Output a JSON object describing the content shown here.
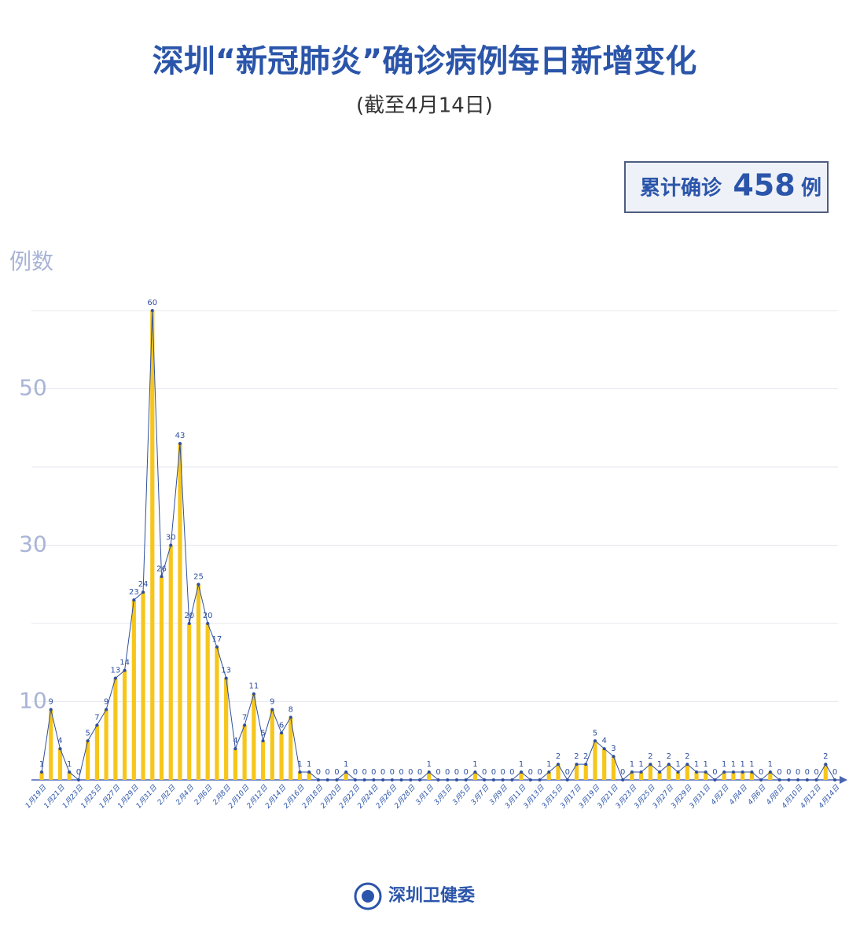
{
  "chart_data": {
    "type": "bar-line",
    "title": "深圳“新冠肺炎”确诊病例每日新增变化",
    "subtitle": "(截至4月14日)",
    "total": {
      "label": "累计确诊",
      "value": 458,
      "unit": "例"
    },
    "y_label": "例数",
    "source": "深圳卫健委",
    "categories": [
      "1月19日",
      null,
      "1月21日",
      null,
      "1月23日",
      null,
      "1月25日",
      null,
      "1月27日",
      null,
      "1月29日",
      null,
      "1月31日",
      null,
      "2月2日",
      null,
      "2月4日",
      null,
      "2月6日",
      null,
      "2月8日",
      null,
      "2月10日",
      null,
      "2月12日",
      null,
      "2月14日",
      null,
      "2月16日",
      null,
      "2月18日",
      null,
      "2月20日",
      null,
      "2月22日",
      null,
      "2月24日",
      null,
      "2月26日",
      null,
      "2月28日",
      null,
      "3月1日",
      null,
      "3月3日",
      null,
      "3月5日",
      null,
      "3月7日",
      null,
      "3月9日",
      null,
      "3月11日",
      null,
      "3月13日",
      null,
      "3月15日",
      null,
      "3月17日",
      null,
      "3月19日",
      null,
      "3月21日",
      null,
      "3月23日",
      null,
      "3月25日",
      null,
      "3月27日",
      null,
      "3月29日",
      null,
      "3月31日",
      null,
      "4月2日",
      null,
      "4月4日",
      null,
      "4月6日",
      null,
      "4月8日",
      null,
      "4月10日",
      null,
      "4月12日",
      null,
      "4月14日"
    ],
    "values": [
      1,
      9,
      4,
      1,
      0,
      5,
      7,
      9,
      13,
      14,
      23,
      24,
      60,
      26,
      30,
      43,
      20,
      25,
      20,
      17,
      13,
      4,
      7,
      11,
      5,
      9,
      6,
      8,
      1,
      1,
      0,
      0,
      0,
      1,
      0,
      0,
      0,
      0,
      0,
      0,
      0,
      0,
      1,
      0,
      0,
      0,
      0,
      1,
      0,
      0,
      0,
      0,
      1,
      0,
      0,
      1,
      2,
      0,
      2,
      2,
      5,
      4,
      3,
      0,
      1,
      1,
      2,
      1,
      2,
      1,
      2,
      1,
      1,
      0,
      1,
      1,
      1,
      1,
      0,
      1,
      0,
      0,
      0,
      0,
      0,
      2,
      0
    ],
    "bar_color": "#f6c61b",
    "line_color": "#2f4f9e",
    "ylim": [
      0,
      60
    ],
    "yticks": [
      10,
      30,
      50
    ],
    "gridlines": [
      10,
      20,
      30,
      40,
      50,
      60
    ]
  }
}
